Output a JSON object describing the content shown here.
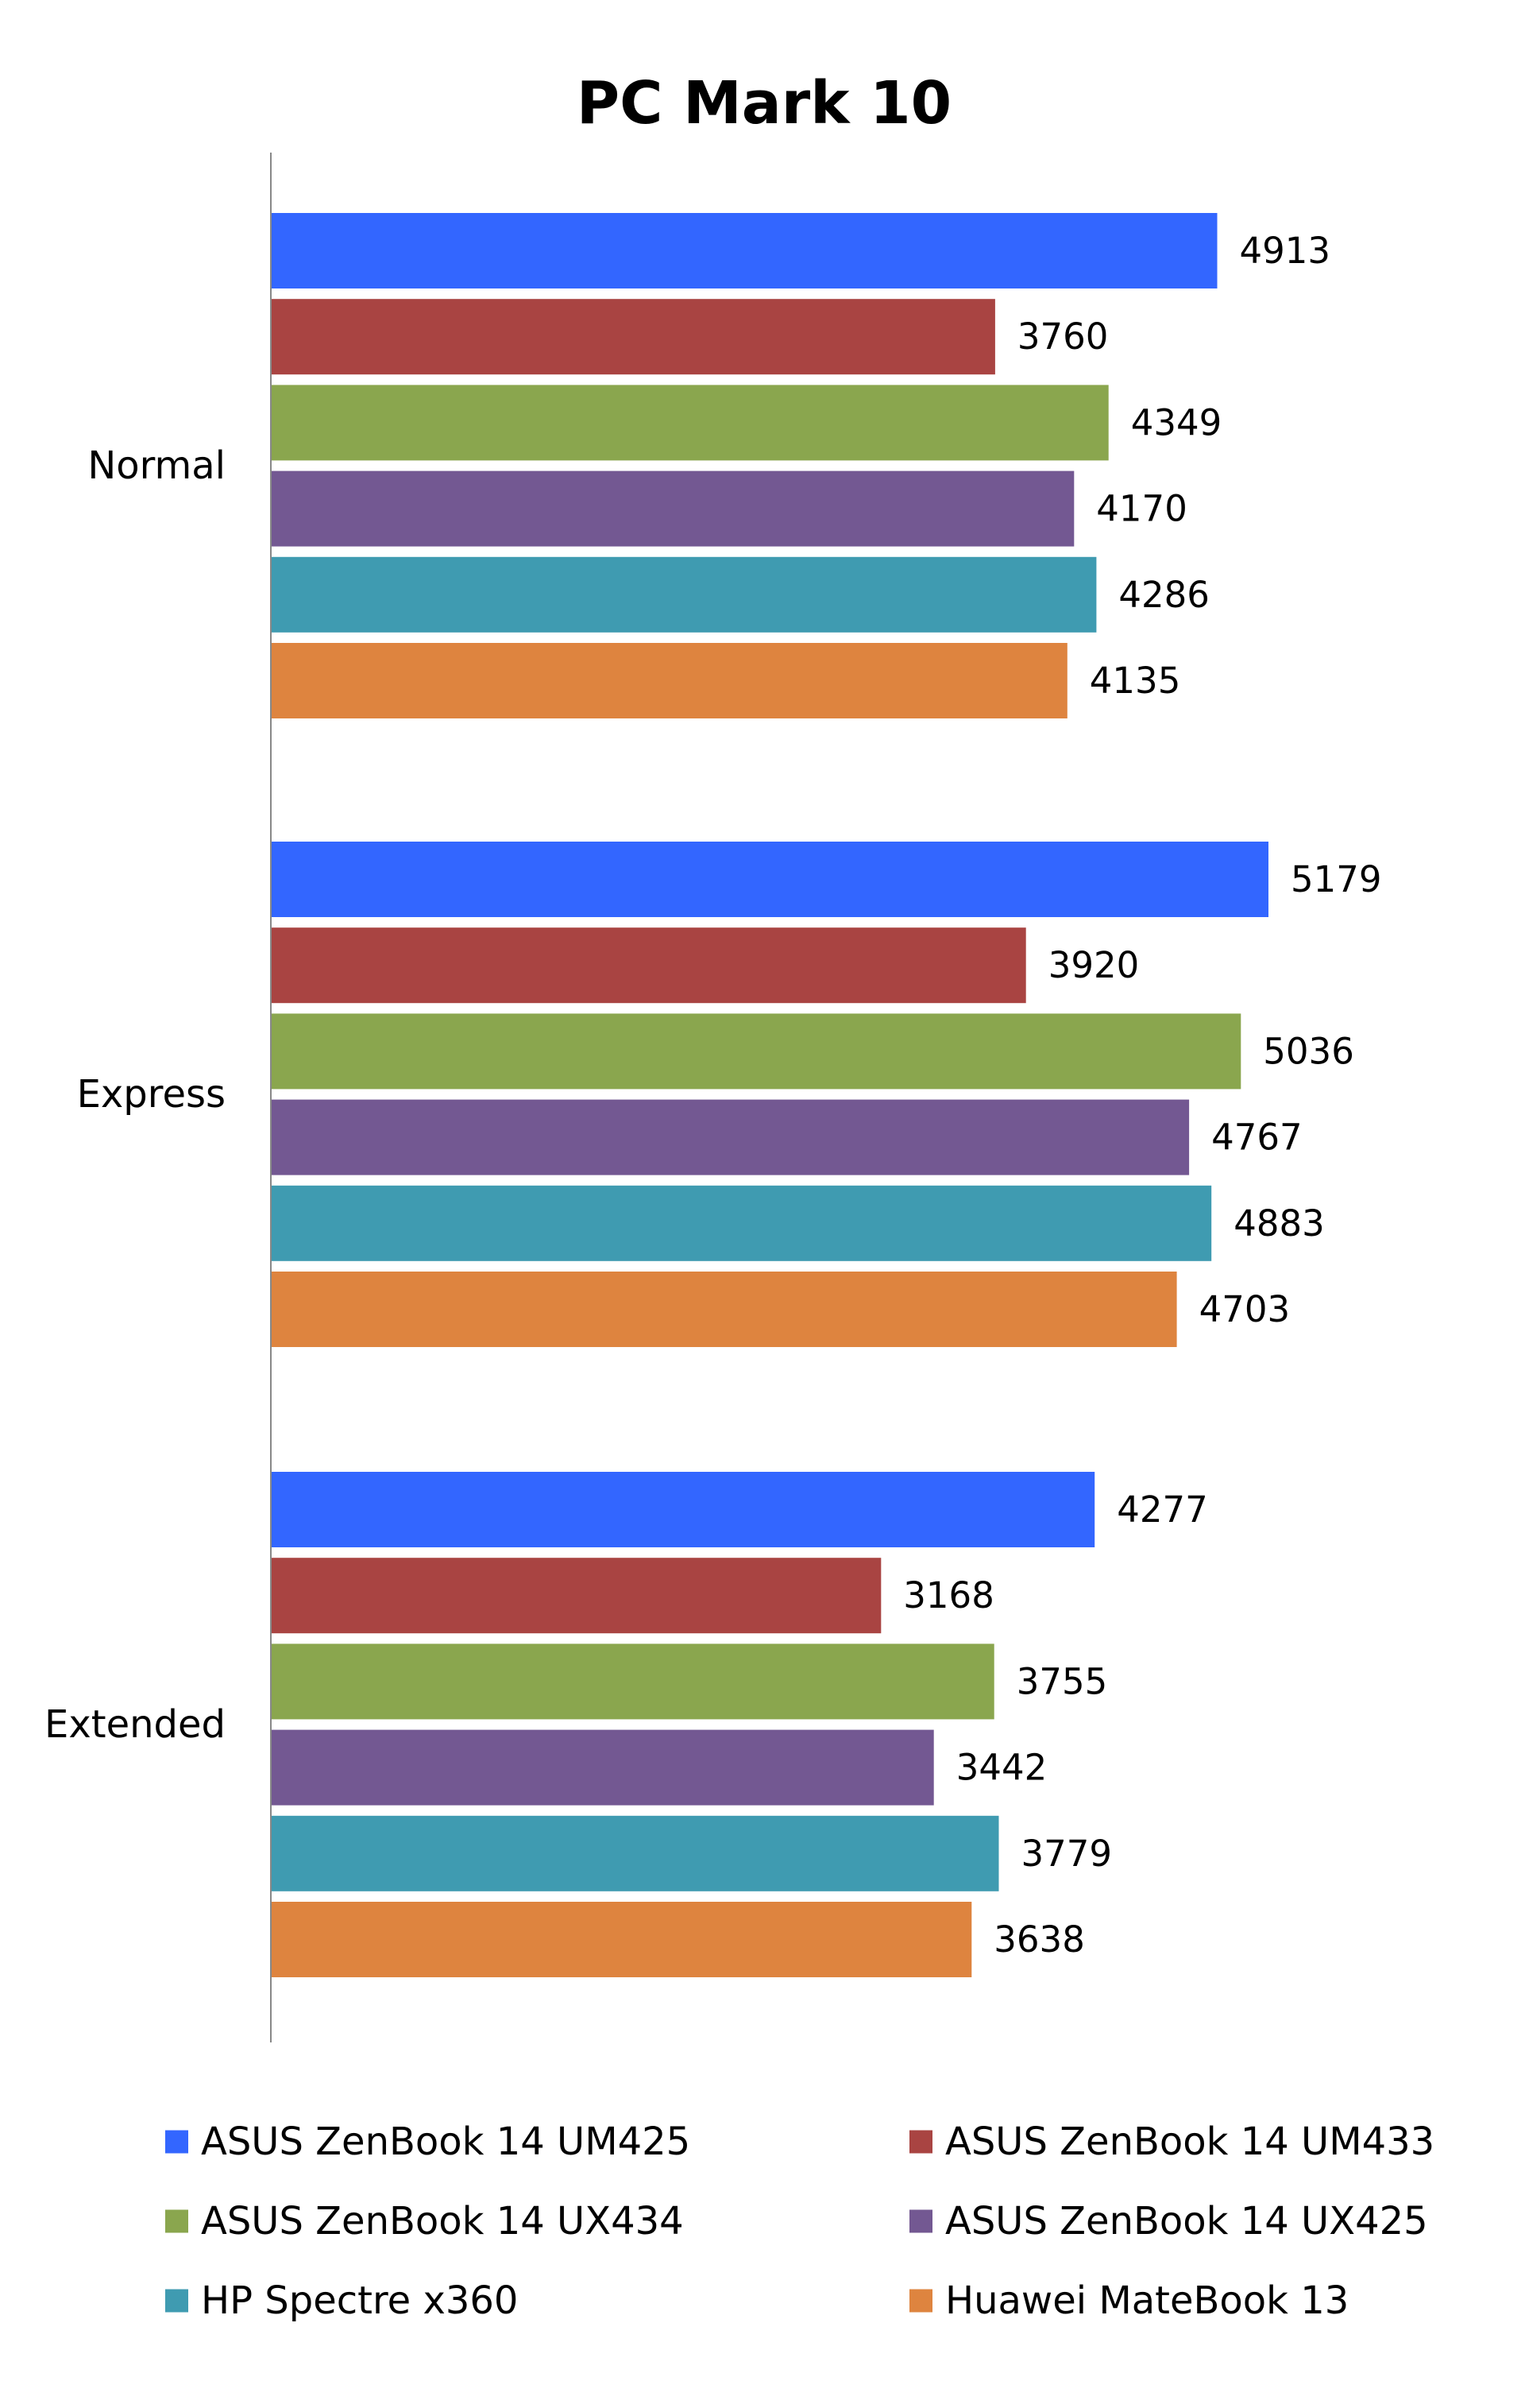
{
  "chart_data": {
    "type": "bar",
    "orientation": "horizontal",
    "title": "PC Mark 10",
    "categories": [
      "Normal",
      "Express",
      "Extended"
    ],
    "series": [
      {
        "name": "ASUS ZenBook 14 UM425",
        "color": "#3366ff",
        "values": [
          4913,
          5179,
          4277
        ]
      },
      {
        "name": "ASUS ZenBook 14 UM433",
        "color": "#a94442",
        "values": [
          3760,
          3920,
          3168
        ]
      },
      {
        "name": "ASUS ZenBook 14 UX434",
        "color": "#8aa64e",
        "values": [
          4349,
          5036,
          3755
        ]
      },
      {
        "name": "ASUS ZenBook 14 UX425",
        "color": "#735892",
        "values": [
          4170,
          4767,
          3442
        ]
      },
      {
        "name": "HP Spectre x360",
        "color": "#3f9bb1",
        "values": [
          4286,
          4883,
          3779
        ]
      },
      {
        "name": "Huawei MateBook 13",
        "color": "#de843f",
        "values": [
          4135,
          4703,
          3638
        ]
      }
    ],
    "xlim": [
      0,
      5500
    ],
    "grid": false,
    "legend": "bottom",
    "data_labels": true
  }
}
